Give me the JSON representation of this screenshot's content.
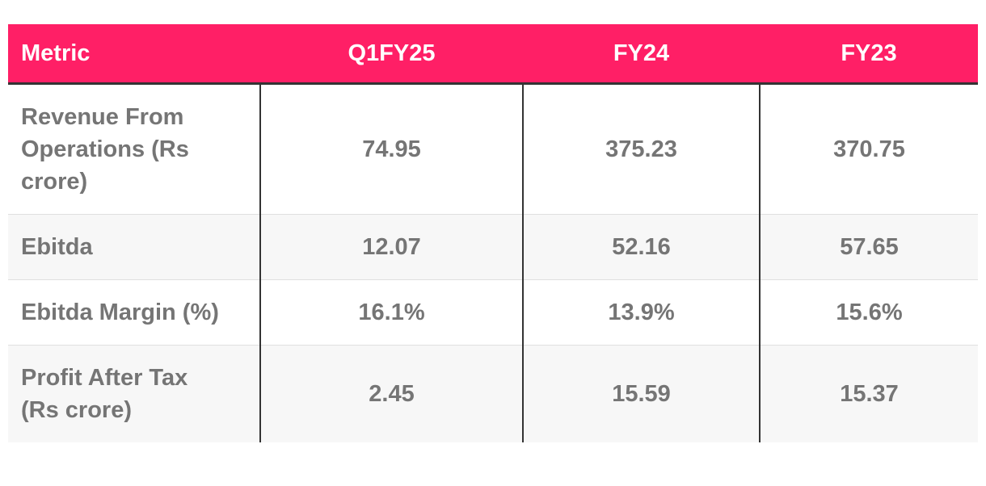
{
  "table": {
    "header": [
      "Metric",
      "Q1FY25",
      "FY24",
      "FY23"
    ],
    "rows": [
      [
        "Revenue From Operations (Rs crore)",
        "74.95",
        "375.23",
        "370.75"
      ],
      [
        "Ebitda",
        "12.07",
        "52.16",
        "57.65"
      ],
      [
        "Ebitda Margin (%)",
        "16.1%",
        "13.9%",
        "15.6%"
      ],
      [
        "Profit After Tax (Rs crore)",
        "2.45",
        "15.59",
        "15.37"
      ]
    ]
  }
}
